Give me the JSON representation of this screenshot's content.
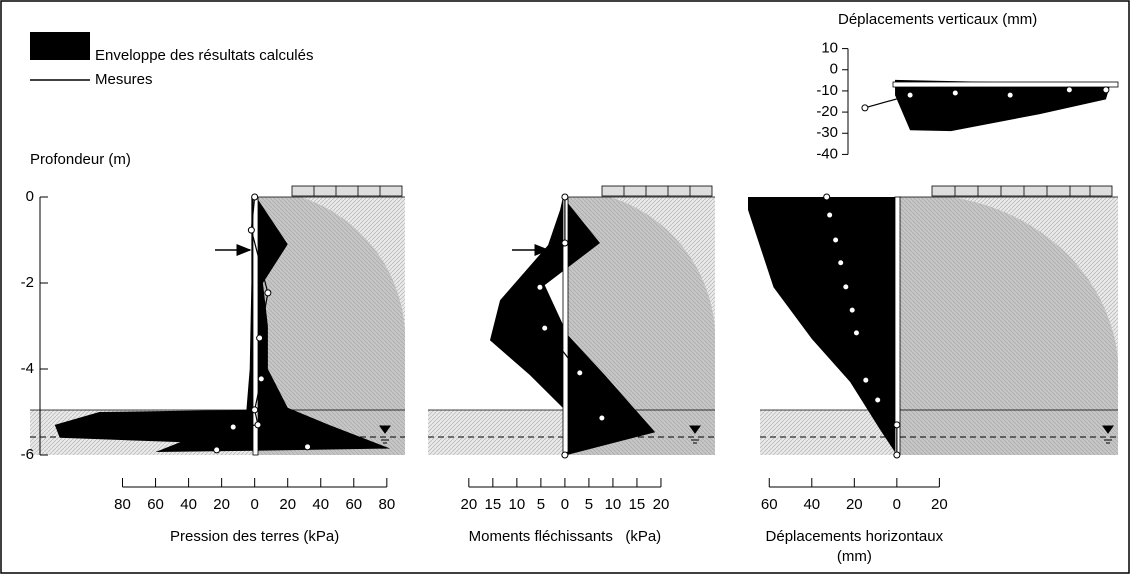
{
  "legend": {
    "envelope": "Enveloppe des résultats calculés",
    "measures": "Mesures"
  },
  "chart_data": [
    {
      "type": "profile",
      "xlabel": [
        "Pression des terres (kPa)"
      ],
      "ylabel": "Profondeur (m)",
      "xlim": [
        -136,
        91
      ],
      "ylim": [
        -6,
        0
      ],
      "yticks": [
        0,
        -2,
        -4,
        -6
      ],
      "xticks": [
        {
          "value": -80,
          "label": "80"
        },
        {
          "value": -60,
          "label": "60"
        },
        {
          "value": -40,
          "label": "40"
        },
        {
          "value": -20,
          "label": "20"
        },
        0,
        20,
        40,
        60,
        80
      ],
      "envelope": {
        "color": "#000000",
        "value": [
          1,
          20,
          5,
          8,
          8,
          20,
          45,
          82,
          0,
          -60,
          -45,
          -118,
          -121,
          -94,
          -5,
          -3,
          -2,
          -2
        ],
        "depth": [
          0,
          -1.1,
          -2,
          -3,
          -4,
          -4.9,
          -5.3,
          -5.85,
          -5.9,
          -5.93,
          -5.7,
          -5.6,
          -5.3,
          -5.0,
          -4.95,
          -4,
          -2,
          0
        ]
      },
      "measures": {
        "color": "#000000",
        "value": [
          0,
          -2,
          8,
          3,
          4,
          0,
          2,
          -13,
          -23,
          null,
          32
        ],
        "depth": [
          0,
          -0.77,
          -2.23,
          -3.28,
          -4.23,
          -4.95,
          -5.3,
          -5.35,
          -5.88,
          null,
          -5.81
        ]
      }
    },
    {
      "type": "profile",
      "xlabel": [
        "Moments fléchissants   (kPa)"
      ],
      "xlim": [
        -28.5,
        31.25
      ],
      "ylim": [
        -6,
        0
      ],
      "xticks": [
        {
          "value": -20,
          "label": "20"
        },
        {
          "value": -15,
          "label": "15"
        },
        {
          "value": -10,
          "label": "10"
        },
        {
          "value": -5,
          "label": "5"
        },
        0,
        5,
        10,
        15,
        20
      ],
      "envelope": {
        "color": "#000000",
        "value": [
          -0.4,
          7.3,
          -4.2,
          0.6,
          8.3,
          18.8,
          0.4,
          0,
          -7.3,
          -15.6,
          -13.5,
          -3.5,
          -1
        ],
        "depth": [
          0,
          -1.07,
          -2.05,
          -3.21,
          -4.14,
          -5.47,
          -6,
          -4.95,
          -4.14,
          -3.33,
          -2.4,
          -1.12,
          -0.3
        ]
      },
      "measures": {
        "color": "#000000",
        "value": [
          0,
          0,
          -5.2,
          -4.2,
          3.1,
          7.7,
          0
        ],
        "depth": [
          0,
          -1.07,
          -2.1,
          -3.05,
          -4.09,
          -5.14,
          -6
        ]
      }
    },
    {
      "type": "profile",
      "xlabel": [
        "Déplacements horizontaux",
        "(mm)"
      ],
      "xlim": [
        -70,
        104
      ],
      "ylim": [
        -6,
        0
      ],
      "xticks": [
        {
          "value": -60,
          "label": "60"
        },
        {
          "value": -40,
          "label": "40"
        },
        {
          "value": -20,
          "label": "20"
        },
        0,
        20
      ],
      "envelope": {
        "color": "#000000",
        "value": [
          -70,
          0,
          0,
          -8,
          -22,
          -40,
          -58,
          -70
        ],
        "depth": [
          0,
          0,
          -6,
          -5.4,
          -4.3,
          -3.3,
          -2.1,
          -0.3
        ]
      },
      "measures": {
        "color": "#000000",
        "value": [
          -33,
          -31.6,
          -28.8,
          -26.4,
          -24,
          -21,
          -19,
          -14.6,
          -9,
          0,
          0
        ],
        "depth": [
          0,
          -0.42,
          -1,
          -1.53,
          -2.09,
          -2.63,
          -3.16,
          -4.26,
          -4.72,
          -5.3,
          -6
        ]
      }
    },
    {
      "type": "series",
      "title": "Déplacements verticaux (mm)",
      "xlim": [
        -20,
        105
      ],
      "ylim": [
        -45,
        15
      ],
      "yticks": [
        10,
        0,
        -10,
        -20,
        -30,
        -40
      ],
      "envelope": {
        "color": "#000000",
        "value": [
          -4.8,
          -7,
          -14,
          -21,
          -29,
          -28.6,
          -12
        ],
        "x": [
          0,
          100,
          98,
          67,
          26,
          7,
          0
        ]
      },
      "measures": {
        "color": "#000000",
        "value": [
          -18,
          -12,
          -11,
          -12,
          -9.5,
          -9.5
        ],
        "x": [
          -14,
          7,
          28,
          53.5,
          81,
          98
        ]
      }
    }
  ]
}
